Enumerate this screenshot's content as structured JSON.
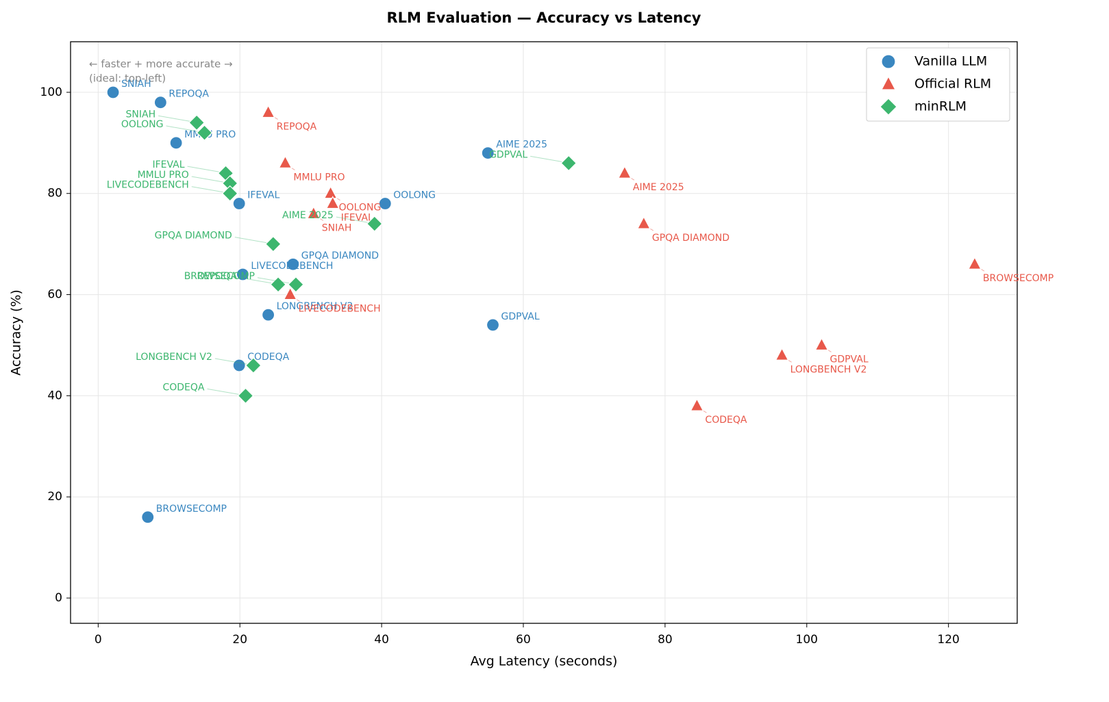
{
  "chart_data": {
    "type": "scatter",
    "title": "RLM Evaluation — Accuracy vs Latency",
    "x_label": "Avg Latency (seconds)",
    "y_label": "Accuracy (%)",
    "annotation": [
      "← faster + more accurate →",
      "(ideal: top-left)"
    ],
    "xlim": [
      -3.9,
      129.7
    ],
    "ylim": [
      -5,
      110
    ],
    "xticks": [
      0,
      20,
      40,
      60,
      80,
      100,
      120
    ],
    "yticks": [
      0,
      20,
      40,
      60,
      80,
      100
    ],
    "grid": true,
    "legend": "upper right",
    "series": [
      {
        "name": "Vanilla LLM",
        "color": "#3a87c0",
        "marker": "circle",
        "labels": [
          "SNIAH",
          "REPOQA",
          "MMLU PRO",
          "IFEVAL",
          "OOLONG",
          "AIME 2025",
          "GPQA DIAMOND",
          "LIVECODEBENCH",
          "LONGBENCH V2",
          "GDPVAL",
          "CODEQA",
          "BROWSECOMP"
        ],
        "x": [
          2.1,
          8.8,
          11.0,
          19.9,
          40.5,
          55.0,
          27.5,
          20.4,
          24.0,
          55.7,
          19.9,
          7.0
        ],
        "values": [
          100,
          98,
          90,
          78,
          78,
          88,
          66,
          64,
          56,
          54,
          46,
          16
        ]
      },
      {
        "name": "Official RLM",
        "color": "#e8584a",
        "marker": "triangle",
        "labels": [
          "REPOQA",
          "MMLU PRO",
          "OOLONG",
          "IFEVAL",
          "SNIAH",
          "AIME 2025",
          "GPQA DIAMOND",
          "BROWSECOMP",
          "LIVECODEBENCH",
          "GDPVAL",
          "LONGBENCH V2",
          "CODEQA"
        ],
        "x": [
          24.0,
          26.4,
          32.8,
          33.1,
          30.4,
          74.3,
          77.0,
          123.7,
          27.1,
          102.1,
          96.5,
          84.5
        ],
        "values": [
          96,
          86,
          80,
          78,
          76,
          84,
          74,
          66,
          60,
          50,
          48,
          38
        ]
      },
      {
        "name": "minRLM",
        "color": "#3cb66e",
        "marker": "diamond",
        "labels": [
          "SNIAH",
          "OOLONG",
          "GDPVAL",
          "IFEVAL",
          "MMLU PRO",
          "LIVECODEBENCH",
          "AIME 2025",
          "GPQA DIAMOND",
          "REPOQA",
          "BROWSECOMP",
          "LONGBENCH V2",
          "CODEQA"
        ],
        "x": [
          13.9,
          15.0,
          66.4,
          18.0,
          18.6,
          18.6,
          39.0,
          24.7,
          25.4,
          27.9,
          21.9,
          20.8
        ],
        "values": [
          94,
          92,
          86,
          84,
          82,
          80,
          74,
          70,
          62,
          62,
          46,
          40
        ]
      }
    ]
  }
}
